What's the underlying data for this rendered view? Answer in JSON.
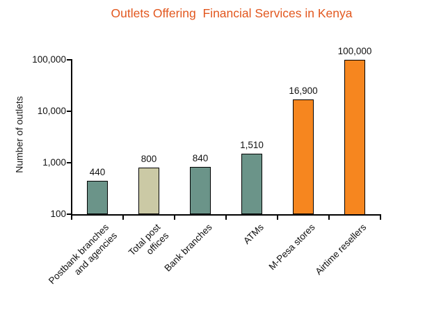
{
  "colors": {
    "title": "#e2571e",
    "teal": "#6b9489",
    "beige": "#cbc9a5",
    "orange": "#f6861f",
    "axis": "#000000"
  },
  "chart_data": {
    "type": "bar",
    "title": "Outlets Offering  Financial Services in Kenya",
    "xlabel": "",
    "ylabel": "Number of outlets",
    "y_scale": "log",
    "ylim": [
      100,
      100000
    ],
    "y_ticks": [
      {
        "value": 100,
        "label": "100"
      },
      {
        "value": 1000,
        "label": "1,000"
      },
      {
        "value": 10000,
        "label": "10,000"
      },
      {
        "value": 100000,
        "label": "100,000"
      }
    ],
    "grid": false,
    "legend": null,
    "categories": [
      "Postbank branches\nand agencies",
      "Total post\noffices",
      "Bank branches",
      "ATMs",
      "M-Pesa stores",
      "Airtime resellers"
    ],
    "values": [
      440,
      800,
      840,
      1510,
      16900,
      100000
    ],
    "value_labels": [
      "440",
      "800",
      "840",
      "1,510",
      "16,900",
      "100,000"
    ],
    "bar_color_keys": [
      "teal",
      "beige",
      "teal",
      "teal",
      "orange",
      "orange"
    ]
  }
}
